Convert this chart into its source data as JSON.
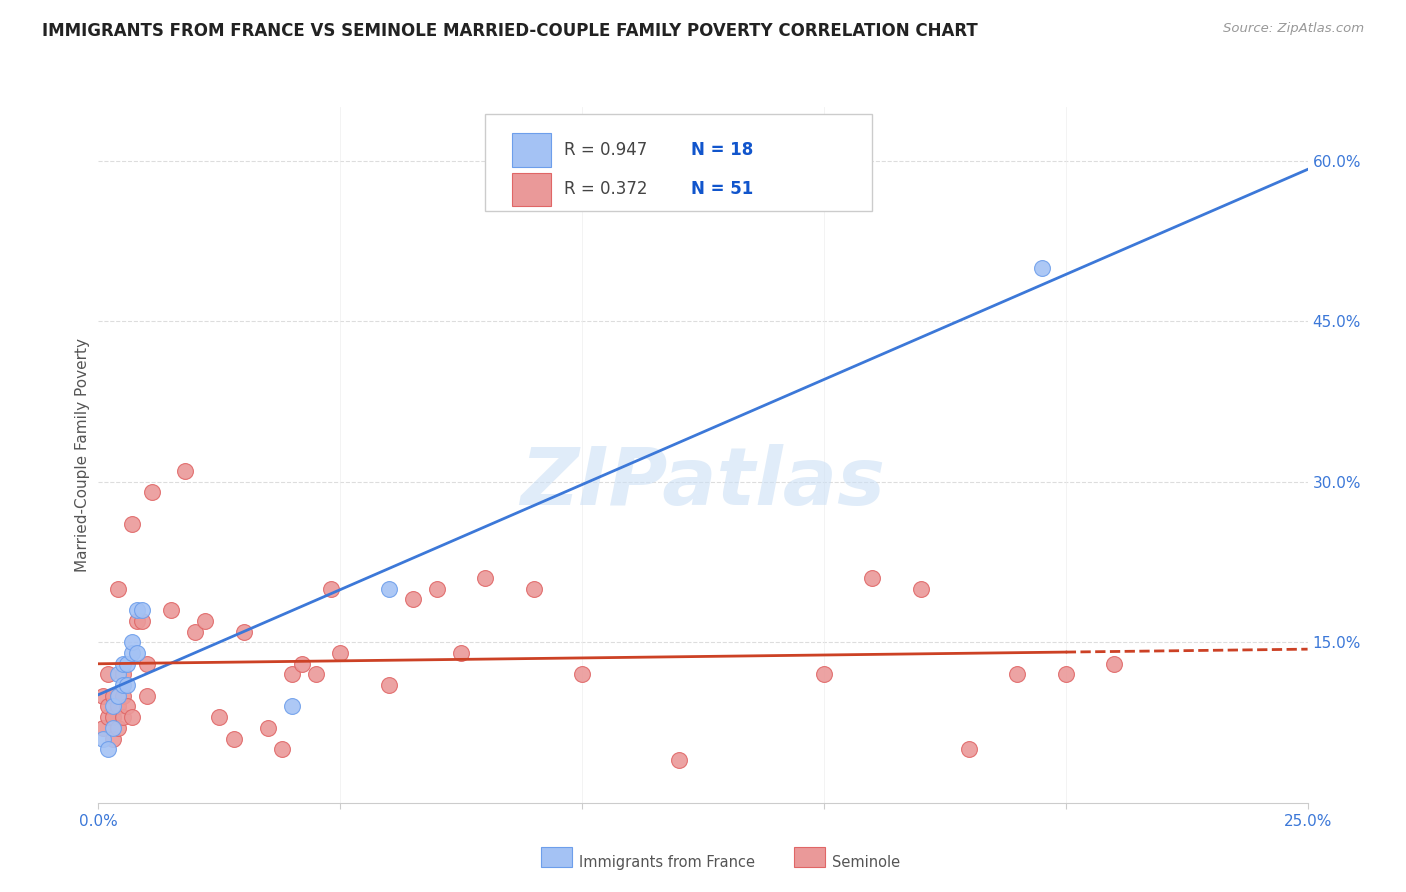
{
  "title": "IMMIGRANTS FROM FRANCE VS SEMINOLE MARRIED-COUPLE FAMILY POVERTY CORRELATION CHART",
  "source": "Source: ZipAtlas.com",
  "ylabel": "Married-Couple Family Poverty",
  "xlim": [
    0.0,
    0.25
  ],
  "ylim": [
    0.0,
    0.65
  ],
  "xticks": [
    0.0,
    0.05,
    0.1,
    0.15,
    0.2,
    0.25
  ],
  "xtick_labels": [
    "0.0%",
    "",
    "",
    "",
    "",
    "25.0%"
  ],
  "yticks_right": [
    0.0,
    0.15,
    0.3,
    0.45,
    0.6
  ],
  "ytick_right_labels": [
    "",
    "15.0%",
    "30.0%",
    "45.0%",
    "60.0%"
  ],
  "blue_fill": "#a4c2f4",
  "blue_edge": "#6d9eeb",
  "pink_fill": "#ea9999",
  "pink_edge": "#e06666",
  "blue_line_color": "#3c78d8",
  "pink_line_color": "#cc4125",
  "legend_R1": "R = 0.947",
  "legend_N1": "N = 18",
  "legend_R2": "R = 0.372",
  "legend_N2": "N = 51",
  "text_dark": "#444444",
  "text_blue": "#1155cc",
  "watermark": "ZIPatlas",
  "blue_scatter_x": [
    0.001,
    0.002,
    0.003,
    0.003,
    0.004,
    0.004,
    0.005,
    0.005,
    0.006,
    0.006,
    0.007,
    0.007,
    0.008,
    0.008,
    0.009,
    0.04,
    0.06,
    0.195
  ],
  "blue_scatter_y": [
    0.06,
    0.05,
    0.07,
    0.09,
    0.1,
    0.12,
    0.11,
    0.13,
    0.11,
    0.13,
    0.14,
    0.15,
    0.14,
    0.18,
    0.18,
    0.09,
    0.2,
    0.5
  ],
  "pink_scatter_x": [
    0.001,
    0.001,
    0.002,
    0.002,
    0.002,
    0.003,
    0.003,
    0.003,
    0.004,
    0.004,
    0.004,
    0.005,
    0.005,
    0.005,
    0.006,
    0.007,
    0.007,
    0.008,
    0.009,
    0.01,
    0.01,
    0.011,
    0.015,
    0.018,
    0.02,
    0.022,
    0.025,
    0.028,
    0.03,
    0.035,
    0.038,
    0.04,
    0.042,
    0.045,
    0.048,
    0.05,
    0.06,
    0.065,
    0.07,
    0.075,
    0.08,
    0.09,
    0.1,
    0.12,
    0.15,
    0.16,
    0.17,
    0.18,
    0.19,
    0.2,
    0.21
  ],
  "pink_scatter_y": [
    0.07,
    0.1,
    0.08,
    0.09,
    0.12,
    0.06,
    0.08,
    0.1,
    0.07,
    0.09,
    0.2,
    0.08,
    0.1,
    0.12,
    0.09,
    0.08,
    0.26,
    0.17,
    0.17,
    0.1,
    0.13,
    0.29,
    0.18,
    0.31,
    0.16,
    0.17,
    0.08,
    0.06,
    0.16,
    0.07,
    0.05,
    0.12,
    0.13,
    0.12,
    0.2,
    0.14,
    0.11,
    0.19,
    0.2,
    0.14,
    0.21,
    0.2,
    0.12,
    0.04,
    0.12,
    0.21,
    0.2,
    0.05,
    0.12,
    0.12,
    0.13
  ]
}
